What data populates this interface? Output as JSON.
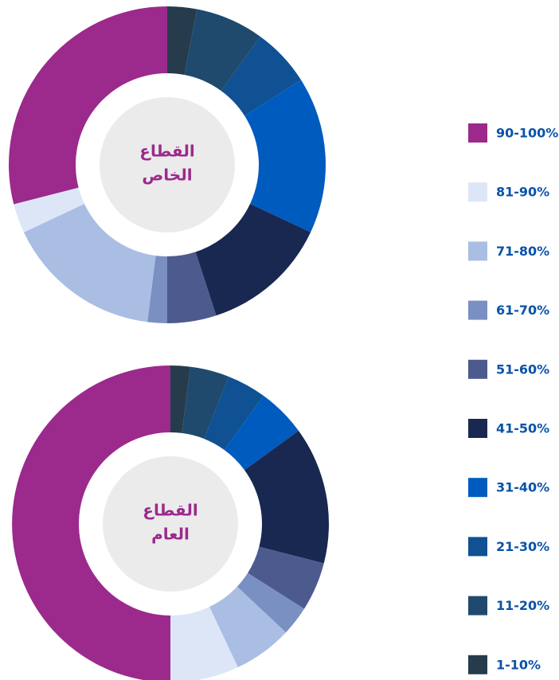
{
  "legend": {
    "categories": [
      "90-100%",
      "81-90%",
      "71-80%",
      "61-70%",
      "51-60%",
      "41-50%",
      "31-40%",
      "21-30%",
      "11-20%",
      "1-10%"
    ],
    "colors": [
      "#9b2a8c",
      "#dce6f7",
      "#aabde3",
      "#7a8fc2",
      "#4c5a8e",
      "#192851",
      "#005bbf",
      "#0f5192",
      "#1f4a6e",
      "#263b4c"
    ]
  },
  "chart_data": [
    {
      "type": "pie",
      "title": [
        "القطاع",
        "الخاص"
      ],
      "values": [
        29,
        3,
        16,
        2,
        5,
        13,
        16,
        6,
        7,
        3
      ]
    },
    {
      "type": "pie",
      "title": [
        "القطاع",
        "العام"
      ],
      "values": [
        50,
        7,
        6,
        3,
        5,
        14,
        5,
        4,
        4,
        2
      ]
    }
  ]
}
